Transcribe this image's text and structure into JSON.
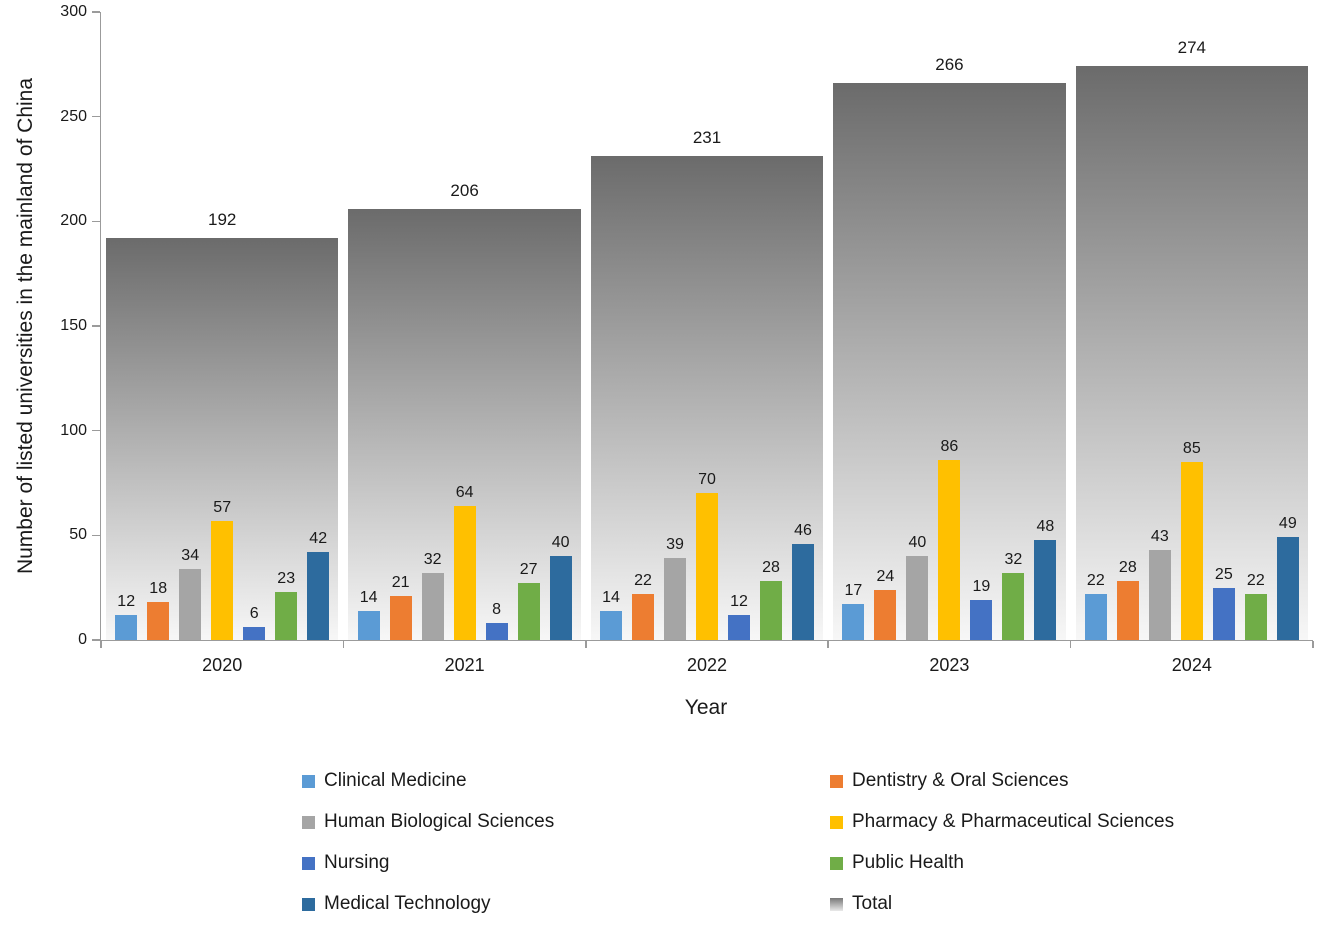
{
  "chart_data": {
    "type": "bar",
    "title": "",
    "xlabel": "Year",
    "ylabel": "Number of listed universities in the mainland of China",
    "ylim": [
      0,
      300
    ],
    "yticks": [
      0,
      50,
      100,
      150,
      200,
      250,
      300
    ],
    "categories": [
      "2020",
      "2021",
      "2022",
      "2023",
      "2024"
    ],
    "series": [
      {
        "name": "Clinical Medicine",
        "color": "#5B9BD5",
        "values": [
          12,
          14,
          14,
          17,
          22
        ]
      },
      {
        "name": "Dentistry & Oral Sciences",
        "color": "#ED7D31",
        "values": [
          18,
          21,
          22,
          24,
          28
        ]
      },
      {
        "name": "Human Biological Sciences",
        "color": "#A5A5A5",
        "values": [
          34,
          32,
          39,
          40,
          43
        ]
      },
      {
        "name": "Pharmacy & Pharmaceutical Sciences",
        "color": "#FFC000",
        "values": [
          57,
          64,
          70,
          86,
          85
        ]
      },
      {
        "name": "Nursing",
        "color": "#4472C4",
        "values": [
          6,
          8,
          12,
          19,
          25
        ]
      },
      {
        "name": "Public Health",
        "color": "#70AD47",
        "values": [
          23,
          27,
          28,
          32,
          22
        ]
      },
      {
        "name": "Medical Technology",
        "color": "#2D6B9E",
        "values": [
          42,
          40,
          46,
          48,
          49
        ]
      }
    ],
    "total_series": {
      "name": "Total",
      "values": [
        192,
        206,
        231,
        266,
        274
      ],
      "gradient_top": "#6b6b6b",
      "gradient_bottom": "#f7f7f7"
    },
    "legend": [
      {
        "name": "Clinical Medicine",
        "color": "#5B9BD5"
      },
      {
        "name": "Dentistry & Oral Sciences",
        "color": "#ED7D31"
      },
      {
        "name": "Human Biological Sciences",
        "color": "#A5A5A5"
      },
      {
        "name": "Pharmacy & Pharmaceutical Sciences",
        "color": "#FFC000"
      },
      {
        "name": "Nursing",
        "color": "#4472C4"
      },
      {
        "name": "Public Health",
        "color": "#70AD47"
      },
      {
        "name": "Medical Technology",
        "color": "#2D6B9E"
      },
      {
        "name": "Total",
        "gradient_top": "#787878",
        "gradient_bottom": "#e9e9e9"
      }
    ],
    "legend_position": "bottom",
    "grid": false
  }
}
